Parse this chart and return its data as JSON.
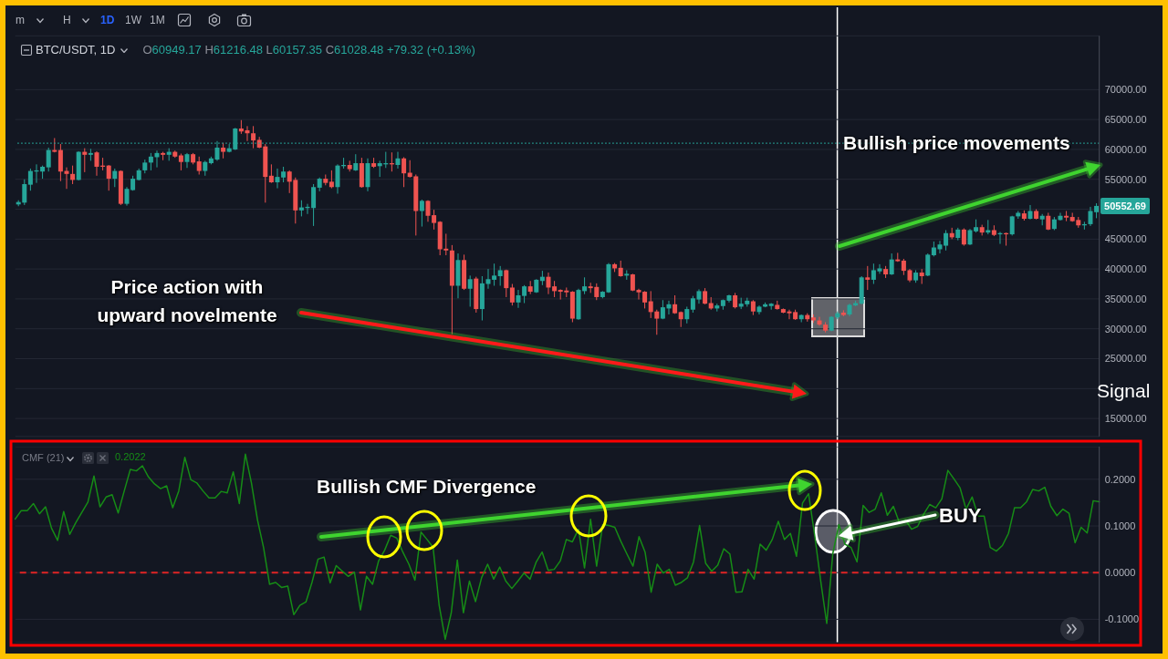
{
  "chart_data": [
    {
      "type": "candlestick",
      "title": "BTC/USDT, 1D",
      "subtitle": "O60949.17 H61216.48 L60157.35 C61028.48 +79.32 (+0.13%)",
      "annotations": [
        "m",
        "H",
        "1D",
        "1W",
        "1M",
        "Price action with upward novelmente",
        "Bullish price movements",
        "Signal",
        "50552.69"
      ],
      "categories": [
        null,
        null,
        null,
        null,
        null,
        null,
        null,
        null,
        null,
        null,
        null,
        null,
        null,
        null,
        null,
        null,
        null,
        null,
        null,
        null,
        null,
        null,
        null,
        null,
        null,
        null,
        null,
        null,
        null,
        null,
        null,
        null,
        null,
        null,
        null,
        null,
        null,
        null,
        null,
        null,
        null,
        null,
        null,
        null,
        null,
        null,
        null,
        null,
        null,
        null,
        null,
        null,
        null,
        null,
        null,
        null,
        null,
        null,
        null,
        null,
        null,
        null,
        null,
        null,
        null,
        null,
        null,
        null,
        null,
        null,
        null,
        null,
        null,
        null,
        null,
        null,
        null,
        null,
        null,
        null,
        null,
        null,
        null,
        null,
        null,
        null,
        null,
        null,
        null,
        null,
        null,
        null,
        null,
        null,
        null,
        null,
        null,
        null,
        null,
        null,
        null,
        null,
        null,
        null,
        null,
        null,
        null,
        null,
        null,
        null,
        null,
        null,
        null,
        null,
        null,
        null,
        null,
        null,
        null,
        null,
        null,
        null,
        null,
        null,
        null,
        null,
        null,
        null,
        null,
        null,
        null,
        null,
        null,
        null,
        null,
        null,
        null,
        null,
        null,
        null,
        null,
        null,
        null,
        null,
        null,
        null,
        null,
        null,
        null,
        null,
        null,
        null,
        null,
        null,
        null,
        null,
        null,
        null,
        null,
        null,
        null,
        null,
        null,
        null,
        null,
        null,
        null,
        null,
        null,
        null,
        null,
        null,
        null,
        null,
        null,
        null,
        null,
        null,
        null,
        null
      ],
      "ohlc": [
        [
          50800,
          51500,
          50500,
          51200
        ],
        [
          51100,
          55000,
          50700,
          54200
        ],
        [
          54100,
          56800,
          53100,
          56400
        ],
        [
          56300,
          57500,
          54400,
          56500
        ],
        [
          56300,
          57300,
          55100,
          57100
        ],
        [
          57000,
          60300,
          56300,
          59900
        ],
        [
          59900,
          61900,
          59500,
          59600
        ],
        [
          59900,
          60900,
          54700,
          56300
        ],
        [
          56400,
          57000,
          53400,
          55900
        ],
        [
          55900,
          57300,
          54200,
          54900
        ],
        [
          54900,
          59700,
          54800,
          59600
        ],
        [
          59600,
          60200,
          56200,
          59100
        ],
        [
          59100,
          60100,
          58100,
          59400
        ],
        [
          59500,
          59700,
          55600,
          57100
        ],
        [
          57300,
          58600,
          56500,
          57100
        ],
        [
          57300,
          57400,
          53100,
          55100
        ],
        [
          55100,
          56800,
          53700,
          56400
        ],
        [
          56400,
          56500,
          50700,
          50900
        ],
        [
          50900,
          53700,
          50600,
          53400
        ],
        [
          53200,
          55600,
          53100,
          55100
        ],
        [
          54900,
          56800,
          54800,
          56500
        ],
        [
          56500,
          58300,
          56000,
          57800
        ],
        [
          57800,
          59400,
          56500,
          58800
        ],
        [
          58700,
          59800,
          57000,
          59400
        ],
        [
          59400,
          59600,
          58200,
          59100
        ],
        [
          59100,
          60200,
          58100,
          59600
        ],
        [
          59600,
          59800,
          58600,
          58800
        ],
        [
          59000,
          59300,
          56500,
          57900
        ],
        [
          57900,
          59400,
          56900,
          59200
        ],
        [
          59200,
          59400,
          57500,
          57800
        ],
        [
          58000,
          58800,
          55800,
          56400
        ],
        [
          56400,
          58100,
          55600,
          57900
        ],
        [
          57700,
          58800,
          57500,
          58500
        ],
        [
          58300,
          61400,
          58100,
          60300
        ],
        [
          60300,
          61100,
          58500,
          59600
        ],
        [
          59600,
          60900,
          59500,
          60200
        ],
        [
          60000,
          63600,
          59900,
          63500
        ],
        [
          63500,
          64900,
          62600,
          63000
        ],
        [
          63200,
          63900,
          61400,
          62700
        ],
        [
          62700,
          63900,
          60200,
          61500
        ],
        [
          61600,
          62100,
          60200,
          60300
        ],
        [
          60500,
          60900,
          51100,
          55400
        ],
        [
          55600,
          57500,
          54400,
          54500
        ],
        [
          54500,
          56800,
          53500,
          55400
        ],
        [
          55300,
          57100,
          54500,
          56300
        ],
        [
          56300,
          56500,
          52700,
          54600
        ],
        [
          54900,
          55300,
          47600,
          49800
        ],
        [
          49800,
          51500,
          48800,
          50300
        ],
        [
          50200,
          50900,
          49200,
          50400
        ],
        [
          50200,
          54200,
          47200,
          53700
        ],
        [
          53600,
          55300,
          53000,
          55100
        ],
        [
          55100,
          55800,
          54000,
          54400
        ],
        [
          54600,
          56500,
          53500,
          53700
        ],
        [
          53700,
          57500,
          52600,
          57300
        ],
        [
          57200,
          58600,
          56800,
          57400
        ],
        [
          57400,
          58100,
          56300,
          56700
        ],
        [
          56500,
          59200,
          56400,
          57700
        ],
        [
          57700,
          58600,
          53600,
          53700
        ],
        [
          53700,
          58500,
          53000,
          57700
        ],
        [
          57700,
          58600,
          56900,
          57100
        ],
        [
          57200,
          58100,
          55400,
          57700
        ],
        [
          57500,
          59600,
          56900,
          57700
        ],
        [
          57700,
          59500,
          56300,
          57500
        ],
        [
          57400,
          59600,
          56800,
          58500
        ],
        [
          58500,
          58700,
          53700,
          56000
        ],
        [
          56100,
          58200,
          55300,
          55400
        ],
        [
          55500,
          55800,
          45600,
          49700
        ],
        [
          49700,
          51600,
          47100,
          51400
        ],
        [
          51400,
          51500,
          47900,
          48900
        ],
        [
          49000,
          49900,
          46600,
          47700
        ],
        [
          47900,
          48000,
          42300,
          43300
        ],
        [
          43400,
          45900,
          42300,
          43100
        ],
        [
          43100,
          44000,
          29100,
          37200
        ],
        [
          37200,
          42600,
          35100,
          41500
        ],
        [
          41500,
          42400,
          36500,
          36700
        ],
        [
          36700,
          38900,
          33700,
          38300
        ],
        [
          38400,
          38700,
          32700,
          33300
        ],
        [
          33300,
          38800,
          31400,
          37600
        ],
        [
          37500,
          40000,
          36700,
          38300
        ],
        [
          38200,
          40900,
          37200,
          38900
        ],
        [
          38800,
          40500,
          37200,
          39800
        ],
        [
          39800,
          39900,
          35300,
          36800
        ],
        [
          36900,
          37500,
          33900,
          34400
        ],
        [
          34400,
          36500,
          33500,
          35600
        ],
        [
          35500,
          37300,
          34300,
          37100
        ],
        [
          37100,
          38000,
          35800,
          36200
        ],
        [
          36100,
          38300,
          36000,
          38200
        ],
        [
          38000,
          39700,
          37300,
          38700
        ],
        [
          38700,
          39400,
          35800,
          36900
        ],
        [
          37100,
          38000,
          35300,
          36300
        ],
        [
          36500,
          36600,
          34900,
          36200
        ],
        [
          36400,
          36900,
          35300,
          36100
        ],
        [
          36200,
          36300,
          31100,
          31700
        ],
        [
          31600,
          36700,
          31500,
          36500
        ],
        [
          36300,
          38600,
          35800,
          37100
        ],
        [
          37100,
          37700,
          36000,
          36800
        ],
        [
          37000,
          37600,
          34800,
          35300
        ],
        [
          35300,
          36300,
          35100,
          36200
        ],
        [
          36100,
          41000,
          36000,
          40800
        ],
        [
          40800,
          41000,
          39500,
          40100
        ],
        [
          40200,
          41400,
          38700,
          38800
        ],
        [
          38900,
          39800,
          38200,
          39200
        ],
        [
          39100,
          39200,
          36300,
          36400
        ],
        [
          36500,
          36700,
          34900,
          36100
        ],
        [
          36200,
          36300,
          33400,
          34400
        ],
        [
          34600,
          36300,
          31800,
          32800
        ],
        [
          32900,
          33200,
          29000,
          31700
        ],
        [
          31700,
          34800,
          31600,
          33600
        ],
        [
          33400,
          34700,
          32400,
          34100
        ],
        [
          34100,
          35600,
          32500,
          32600
        ],
        [
          32800,
          32900,
          30300,
          31600
        ],
        [
          31600,
          33700,
          30900,
          33300
        ],
        [
          33200,
          35500,
          32700,
          35100
        ],
        [
          34900,
          36600,
          34200,
          36300
        ],
        [
          36300,
          36800,
          34100,
          34200
        ],
        [
          34300,
          35300,
          33200,
          33400
        ],
        [
          33400,
          34200,
          32900,
          33900
        ],
        [
          33800,
          34900,
          33200,
          34800
        ],
        [
          34700,
          35700,
          34400,
          35600
        ],
        [
          35600,
          36000,
          33400,
          33600
        ],
        [
          33700,
          35200,
          33300,
          34200
        ],
        [
          34100,
          35200,
          33700,
          34700
        ],
        [
          34600,
          34800,
          32300,
          32900
        ],
        [
          32800,
          33900,
          32400,
          33700
        ],
        [
          33700,
          34400,
          33600,
          34100
        ],
        [
          33800,
          34300,
          33200,
          34200
        ],
        [
          34000,
          34700,
          33200,
          33300
        ],
        [
          33300,
          33400,
          32600,
          32700
        ],
        [
          32900,
          33200,
          31600,
          32600
        ],
        [
          32800,
          33200,
          31500,
          31600
        ],
        [
          31600,
          32400,
          31100,
          32300
        ],
        [
          32300,
          32600,
          31200,
          31600
        ],
        [
          31900,
          32400,
          31000,
          31400
        ],
        [
          31400,
          32000,
          30500,
          30700
        ],
        [
          30700,
          31100,
          29400,
          29700
        ],
        [
          29700,
          32100,
          29600,
          32000
        ],
        [
          31900,
          32900,
          31600,
          32600
        ],
        [
          32700,
          33100,
          32100,
          32300
        ],
        [
          32400,
          34200,
          32100,
          34000
        ],
        [
          33900,
          34700,
          33800,
          34300
        ],
        [
          34200,
          38800,
          34100,
          38600
        ],
        [
          38600,
          40500,
          36500,
          38200
        ],
        [
          38200,
          40900,
          37500,
          39800
        ],
        [
          39600,
          40800,
          39200,
          40100
        ],
        [
          40000,
          40500,
          38500,
          39100
        ],
        [
          39100,
          42600,
          39000,
          41600
        ],
        [
          41600,
          42700,
          41200,
          41300
        ],
        [
          41400,
          41700,
          39000,
          39700
        ],
        [
          39800,
          40000,
          37800,
          38100
        ],
        [
          38100,
          39800,
          37700,
          39400
        ],
        [
          39400,
          40000,
          37500,
          38800
        ],
        [
          38900,
          42600,
          38800,
          42400
        ],
        [
          42300,
          44600,
          42100,
          43600
        ],
        [
          43300,
          44700,
          42600,
          44100
        ],
        [
          43900,
          46500,
          43100,
          46000
        ],
        [
          46000,
          46900,
          45000,
          45300
        ],
        [
          45200,
          46900,
          44800,
          46600
        ],
        [
          46600,
          46800,
          43900,
          44100
        ],
        [
          44100,
          46700,
          44000,
          46500
        ],
        [
          46300,
          48300,
          46100,
          47000
        ],
        [
          47000,
          47400,
          45600,
          46100
        ],
        [
          46100,
          48200,
          45800,
          46500
        ],
        [
          46500,
          47300,
          45500,
          45700
        ],
        [
          45800,
          46200,
          44200,
          46000
        ],
        [
          46000,
          46100,
          43900,
          45800
        ],
        [
          45800,
          48900,
          45600,
          48800
        ],
        [
          48800,
          49700,
          48400,
          49400
        ],
        [
          49300,
          49800,
          48100,
          48400
        ],
        [
          48400,
          50700,
          48300,
          49700
        ],
        [
          49700,
          50000,
          48300,
          48400
        ],
        [
          48300,
          49200,
          47300,
          48900
        ],
        [
          48900,
          49400,
          46500,
          46600
        ],
        [
          46700,
          48700,
          46500,
          48300
        ],
        [
          48200,
          49400,
          48100,
          48900
        ],
        [
          48900,
          49700,
          48000,
          48600
        ],
        [
          48700,
          49400,
          47900,
          48000
        ],
        [
          48200,
          48700,
          46900,
          47300
        ],
        [
          47300,
          47900,
          46600,
          47500
        ],
        [
          47500,
          50400,
          47200,
          49700
        ],
        [
          49500,
          51000,
          48500,
          50552.69
        ]
      ],
      "colors": [
        "#26a69a",
        "#26a69a",
        "#26a69a",
        "#26a69a",
        "#26a69a",
        "#26a69a",
        "#ef5350",
        "#ef5350",
        "#ef5350",
        "#ef5350",
        "#26a69a",
        "#ef5350",
        "#26a69a",
        "#ef5350",
        "#ef5350",
        "#ef5350",
        "#26a69a",
        "#ef5350",
        "#26a69a",
        "#26a69a",
        "#26a69a",
        "#26a69a",
        "#26a69a",
        "#26a69a",
        "#ef5350",
        "#26a69a",
        "#ef5350",
        "#ef5350",
        "#26a69a",
        "#ef5350",
        "#ef5350",
        "#26a69a",
        "#26a69a",
        "#26a69a",
        "#ef5350",
        "#26a69a",
        "#26a69a",
        "#ef5350",
        "#ef5350",
        "#ef5350",
        "#ef5350",
        "#ef5350",
        "#ef5350",
        "#26a69a",
        "#26a69a",
        "#ef5350",
        "#ef5350",
        "#26a69a",
        "#26a69a",
        "#26a69a",
        "#26a69a",
        "#ef5350",
        "#ef5350",
        "#26a69a",
        "#26a69a",
        "#ef5350",
        "#26a69a",
        "#ef5350",
        "#26a69a",
        "#ef5350",
        "#26a69a",
        "#26a69a",
        "#ef5350",
        "#26a69a",
        "#ef5350",
        "#ef5350",
        "#ef5350",
        "#26a69a",
        "#ef5350",
        "#ef5350",
        "#ef5350",
        "#ef5350",
        "#ef5350",
        "#26a69a",
        "#ef5350",
        "#26a69a",
        "#ef5350",
        "#26a69a",
        "#26a69a",
        "#26a69a",
        "#26a69a",
        "#ef5350",
        "#ef5350",
        "#26a69a",
        "#26a69a",
        "#ef5350",
        "#26a69a",
        "#26a69a",
        "#ef5350",
        "#ef5350",
        "#ef5350",
        "#ef5350",
        "#ef5350",
        "#26a69a",
        "#26a69a",
        "#ef5350",
        "#ef5350",
        "#26a69a",
        "#26a69a",
        "#ef5350",
        "#ef5350",
        "#26a69a",
        "#ef5350",
        "#ef5350",
        "#ef5350",
        "#ef5350",
        "#ef5350",
        "#26a69a",
        "#26a69a",
        "#ef5350",
        "#ef5350",
        "#26a69a",
        "#26a69a",
        "#26a69a",
        "#ef5350",
        "#ef5350",
        "#26a69a",
        "#26a69a",
        "#26a69a",
        "#ef5350",
        "#26a69a",
        "#26a69a",
        "#ef5350",
        "#26a69a",
        "#26a69a",
        "#26a69a",
        "#ef5350",
        "#ef5350",
        "#ef5350",
        "#ef5350",
        "#26a69a",
        "#ef5350",
        "#ef5350",
        "#ef5350",
        "#ef5350",
        "#26a69a",
        "#26a69a",
        "#ef5350",
        "#26a69a",
        "#26a69a",
        "#26a69a",
        "#ef5350",
        "#26a69a",
        "#26a69a",
        "#ef5350",
        "#26a69a",
        "#ef5350",
        "#ef5350",
        "#ef5350",
        "#26a69a",
        "#ef5350",
        "#26a69a",
        "#26a69a",
        "#26a69a",
        "#26a69a",
        "#ef5350",
        "#26a69a",
        "#ef5350",
        "#26a69a",
        "#26a69a",
        "#ef5350",
        "#26a69a",
        "#ef5350",
        "#26a69a",
        "#ef5350",
        "#26a69a",
        "#26a69a",
        "#ef5350",
        "#26a69a",
        "#ef5350",
        "#26a69a",
        "#ef5350",
        "#26a69a",
        "#26a69a",
        "#ef5350",
        "#ef5350",
        "#ef5350",
        "#26a69a",
        "#26a69a",
        "#26a69a"
      ],
      "ylim": [
        12000,
        79000
      ],
      "yticks": [
        {
          "value": 15000,
          "label": "15000.00"
        },
        {
          "value": 20000,
          "label": null
        },
        {
          "value": 25000,
          "label": "25000.00"
        },
        {
          "value": 30000,
          "label": "30000.00"
        },
        {
          "value": 35000,
          "label": "35000.00"
        },
        {
          "value": 40000,
          "label": "40000.00"
        },
        {
          "value": 45000,
          "label": "45000.00"
        },
        {
          "value": 50000,
          "label": null
        },
        {
          "value": 55000,
          "label": "55000.00"
        },
        {
          "value": 60000,
          "label": "60000.00"
        },
        {
          "value": 65000,
          "label": "65000.00"
        },
        {
          "value": 70000,
          "label": "70000.00"
        }
      ],
      "grid": "y",
      "tick_labels": "y",
      "ref_lines": [
        {
          "axis": "y",
          "value": 61028.48,
          "color": "#26a69a",
          "line_style": "dotted"
        }
      ]
    },
    {
      "type": "line",
      "title": "CMF (21)",
      "annotations": [
        "0.2022",
        "Bullish CMF Divergence",
        "BUY"
      ],
      "categories": [
        null,
        null,
        null,
        null,
        null,
        null,
        null,
        null,
        null,
        null,
        null,
        null,
        null,
        null,
        null,
        null,
        null,
        null,
        null,
        null,
        null,
        null,
        null,
        null,
        null,
        null,
        null,
        null,
        null,
        null,
        null,
        null,
        null,
        null,
        null,
        null,
        null,
        null,
        null,
        null,
        null,
        null,
        null,
        null,
        null,
        null,
        null,
        null,
        null,
        null,
        null,
        null,
        null,
        null,
        null,
        null,
        null,
        null,
        null,
        null,
        null,
        null,
        null,
        null,
        null,
        null,
        null,
        null,
        null,
        null,
        null,
        null,
        null,
        null,
        null,
        null,
        null,
        null,
        null,
        null,
        null,
        null,
        null,
        null,
        null,
        null,
        null,
        null,
        null,
        null,
        null,
        null,
        null,
        null,
        null,
        null,
        null,
        null,
        null,
        null,
        null,
        null,
        null,
        null,
        null,
        null,
        null,
        null,
        null,
        null,
        null,
        null,
        null,
        null,
        null,
        null,
        null,
        null,
        null,
        null,
        null,
        null,
        null,
        null,
        null,
        null,
        null,
        null,
        null,
        null,
        null,
        null,
        null,
        null,
        null,
        null,
        null,
        null,
        null,
        null,
        null,
        null,
        null,
        null,
        null,
        null,
        null,
        null,
        null,
        null,
        null,
        null,
        null,
        null,
        null,
        null,
        null,
        null,
        null,
        null,
        null,
        null,
        null,
        null,
        null,
        null,
        null,
        null,
        null,
        null,
        null,
        null,
        null,
        null,
        null,
        null,
        null,
        null,
        null,
        null
      ],
      "series": [
        {
          "color": "#168c16",
          "values": [
            0.115,
            0.133,
            0.133,
            0.148,
            0.126,
            0.141,
            0.095,
            0.069,
            0.131,
            0.082,
            0.107,
            0.129,
            0.151,
            0.207,
            0.141,
            0.162,
            0.167,
            0.128,
            0.175,
            0.221,
            0.218,
            0.229,
            0.205,
            0.19,
            0.18,
            0.186,
            0.139,
            0.175,
            0.247,
            0.199,
            0.192,
            0.175,
            0.16,
            0.16,
            0.174,
            0.171,
            0.216,
            0.148,
            0.254,
            0.192,
            0.113,
            0.054,
            -0.025,
            -0.021,
            -0.032,
            -0.029,
            -0.09,
            -0.07,
            -0.063,
            -0.021,
            0.029,
            0.033,
            -0.022,
            0.015,
            0.003,
            -0.008,
            0.001,
            -0.08,
            -0.008,
            -0.025,
            0.025,
            0.048,
            0.08,
            0.074,
            0.044,
            0.018,
            -0.016,
            0.087,
            0.071,
            0.054,
            -0.07,
            -0.143,
            -0.086,
            0.027,
            -0.086,
            -0.018,
            -0.062,
            -0.011,
            0.018,
            -0.014,
            0.012,
            -0.018,
            -0.034,
            -0.018,
            -0.001,
            -0.014,
            0.022,
            0.044,
            0.005,
            0.007,
            0.025,
            0.071,
            0.066,
            0.093,
            0.01,
            0.114,
            0.014,
            0.103,
            0.101,
            0.097,
            0.067,
            0.04,
            0.014,
            0.077,
            0.044,
            -0.042,
            0.018,
            -0.001,
            0.007,
            -0.027,
            -0.021,
            -0.011,
            0.023,
            0.101,
            0.02,
            0.003,
            0.016,
            0.051,
            0.04,
            -0.042,
            -0.041,
            0.007,
            -0.014,
            0.061,
            0.048,
            0.071,
            0.11,
            0.071,
            0.084,
            0.035,
            0.149,
            0.169,
            0.08,
            -0.018,
            -0.109,
            0.041,
            0.103,
            0.061,
            0.054,
            0.023,
            0.144,
            0.129,
            0.136,
            0.171,
            0.123,
            0.142,
            0.107,
            0.113,
            0.093,
            0.099,
            0.125,
            0.146,
            0.139,
            0.158,
            0.219,
            0.201,
            0.182,
            0.136,
            0.162,
            0.121,
            0.121,
            0.054,
            0.046,
            0.058,
            0.084,
            0.139,
            0.139,
            0.152,
            0.178,
            0.175,
            0.183,
            0.142,
            0.122,
            0.136,
            0.127,
            0.064,
            0.097,
            0.085,
            0.154,
            0.152
          ]
        }
      ],
      "ylim": [
        -0.15,
        0.27
      ],
      "yticks": [
        {
          "value": -0.1,
          "label": "-0.1000"
        },
        {
          "value": 0,
          "label": "0.0000"
        },
        {
          "value": 0.1,
          "label": "0.1000"
        },
        {
          "value": 0.2,
          "label": "0.2000"
        }
      ],
      "grid": "y",
      "tick_labels": "y",
      "ref_lines": [
        {
          "axis": "y",
          "value": 0,
          "color": "#e02424",
          "line_style": "dashed"
        }
      ]
    }
  ]
}
